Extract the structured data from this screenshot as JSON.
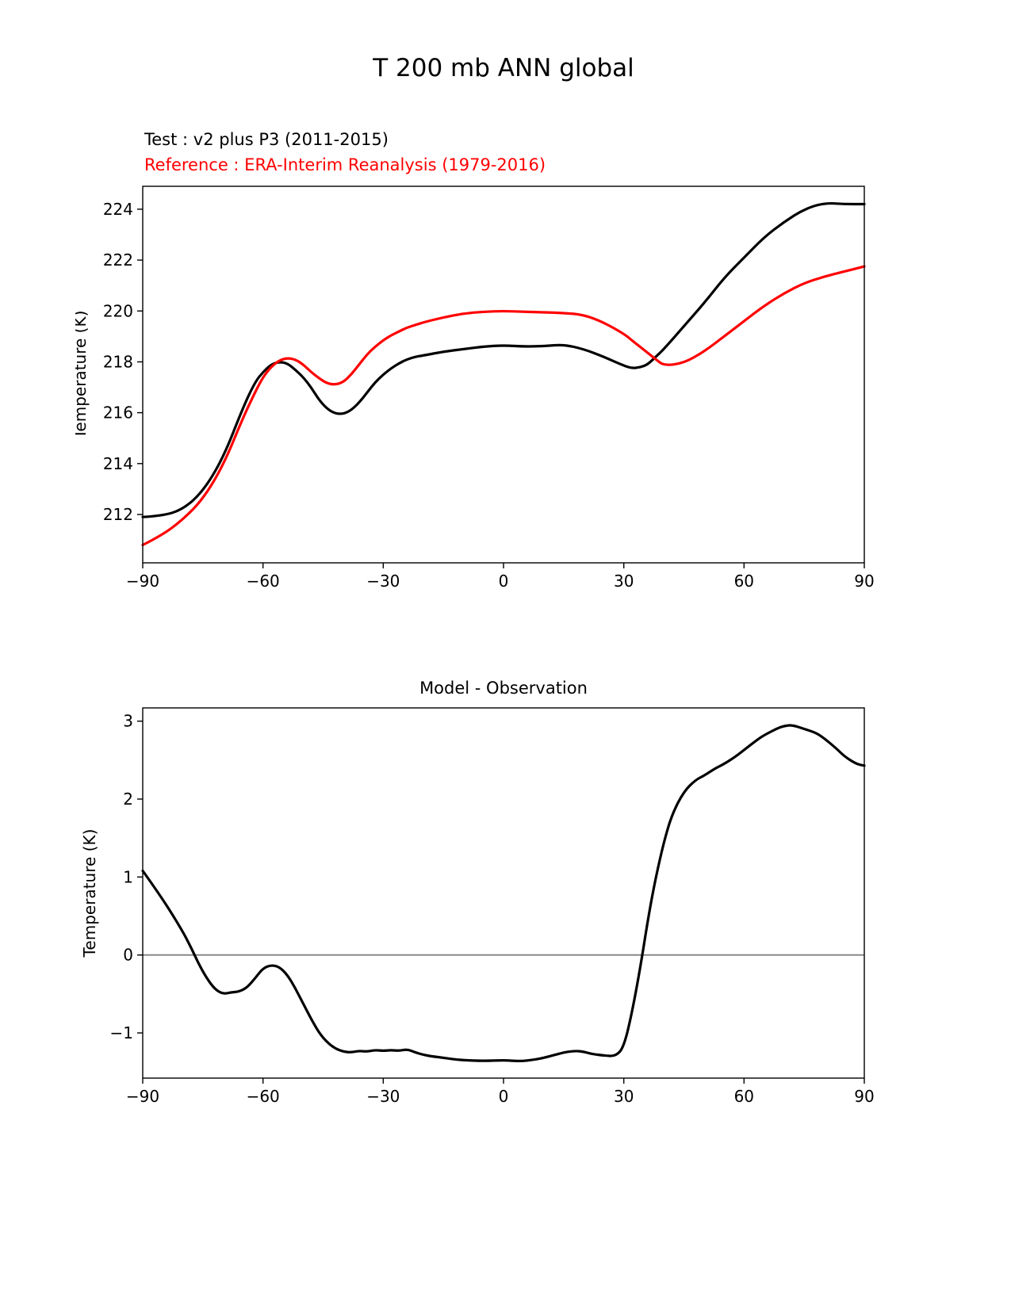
{
  "figure": {
    "title": "T 200 mb ANN global",
    "legend": {
      "test_label": "Test : v2 plus P3 (2011-2015)",
      "reference_label": "Reference : ERA-Interim Reanalysis (1979-2016)",
      "test_color": "#000000",
      "reference_color": "#ff0000"
    }
  },
  "chart_data": [
    {
      "type": "line",
      "title": "",
      "xlabel": "",
      "ylabel": "Temperature (K)",
      "xlim": [
        -90,
        90
      ],
      "ylim": [
        210.1,
        224.9
      ],
      "xticks": [
        -90,
        -60,
        -30,
        0,
        30,
        60,
        90
      ],
      "yticks": [
        212,
        214,
        216,
        218,
        220,
        222,
        224
      ],
      "grid": false,
      "legend_position": "above-upper-left",
      "zero_line": false,
      "series": [
        {
          "name": "Test : v2 plus P3 (2011-2015)",
          "color": "#000000",
          "x": [
            -90,
            -85,
            -80,
            -75,
            -70,
            -65,
            -62,
            -60,
            -58,
            -56,
            -54,
            -52,
            -50,
            -48,
            -46,
            -44,
            -42,
            -40,
            -38,
            -36,
            -34,
            -32,
            -30,
            -28,
            -26,
            -24,
            -22,
            -20,
            -15,
            -10,
            -5,
            0,
            5,
            10,
            15,
            20,
            25,
            30,
            32,
            34,
            36,
            38,
            40,
            45,
            50,
            55,
            60,
            65,
            70,
            75,
            80,
            85,
            90
          ],
          "values": [
            211.9,
            211.95,
            212.2,
            212.9,
            214.2,
            216.2,
            217.2,
            217.6,
            217.9,
            218.0,
            217.95,
            217.7,
            217.4,
            217.0,
            216.5,
            216.15,
            215.97,
            215.95,
            216.1,
            216.4,
            216.8,
            217.2,
            217.5,
            217.75,
            217.95,
            218.1,
            218.2,
            218.25,
            218.4,
            218.5,
            218.6,
            218.65,
            218.6,
            218.62,
            218.68,
            218.5,
            218.2,
            217.85,
            217.75,
            217.78,
            217.9,
            218.2,
            218.5,
            219.4,
            220.3,
            221.3,
            222.1,
            222.9,
            223.5,
            224.0,
            224.25,
            224.2,
            224.2
          ]
        },
        {
          "name": "Reference : ERA-Interim Reanalysis (1979-2016)",
          "color": "#ff0000",
          "x": [
            -90,
            -85,
            -80,
            -75,
            -70,
            -65,
            -62,
            -60,
            -58,
            -56,
            -54,
            -52,
            -50,
            -48,
            -46,
            -44,
            -42,
            -40,
            -38,
            -36,
            -34,
            -32,
            -30,
            -28,
            -26,
            -24,
            -22,
            -20,
            -15,
            -10,
            -5,
            0,
            5,
            10,
            15,
            20,
            25,
            30,
            32,
            34,
            36,
            38,
            40,
            45,
            50,
            55,
            60,
            65,
            70,
            75,
            80,
            85,
            90
          ],
          "values": [
            210.8,
            211.2,
            211.8,
            212.6,
            213.9,
            215.8,
            216.8,
            217.4,
            217.8,
            218.05,
            218.15,
            218.1,
            217.9,
            217.6,
            217.35,
            217.15,
            217.1,
            217.2,
            217.5,
            217.9,
            218.3,
            218.6,
            218.85,
            219.05,
            219.2,
            219.35,
            219.45,
            219.55,
            219.75,
            219.9,
            219.97,
            220.0,
            219.97,
            219.95,
            219.92,
            219.85,
            219.55,
            219.1,
            218.85,
            218.6,
            218.35,
            218.1,
            217.85,
            217.95,
            218.4,
            219.0,
            219.6,
            220.2,
            220.7,
            221.1,
            221.35,
            221.55,
            221.75
          ]
        }
      ]
    },
    {
      "type": "line",
      "title": "Model - Observation",
      "xlabel": "",
      "ylabel": "Temperature (K)",
      "xlim": [
        -90,
        90
      ],
      "ylim": [
        -1.58,
        3.17
      ],
      "xticks": [
        -90,
        -60,
        -30,
        0,
        30,
        60,
        90
      ],
      "yticks": [
        -1,
        0,
        1,
        2,
        3
      ],
      "grid": false,
      "zero_line": true,
      "zero_line_color": "#808080",
      "series": [
        {
          "name": "Model - Observation",
          "color": "#000000",
          "x": [
            -90,
            -85,
            -80,
            -78,
            -76,
            -74,
            -72,
            -70,
            -68,
            -66,
            -64,
            -62,
            -60,
            -58,
            -56,
            -54,
            -52,
            -50,
            -48,
            -46,
            -44,
            -42,
            -40,
            -38,
            -36,
            -34,
            -32,
            -30,
            -28,
            -26,
            -24,
            -22,
            -20,
            -18,
            -15,
            -12,
            -10,
            -5,
            0,
            3,
            5,
            8,
            10,
            13,
            15,
            18,
            20,
            22,
            25,
            28,
            30,
            32,
            34,
            36,
            38,
            40,
            42,
            45,
            48,
            50,
            53,
            55,
            58,
            60,
            63,
            65,
            68,
            70,
            72,
            75,
            78,
            80,
            83,
            85,
            88,
            90
          ],
          "values": [
            1.08,
            0.72,
            0.3,
            0.1,
            -0.12,
            -0.3,
            -0.44,
            -0.5,
            -0.48,
            -0.47,
            -0.42,
            -0.3,
            -0.17,
            -0.13,
            -0.15,
            -0.25,
            -0.42,
            -0.62,
            -0.82,
            -1.0,
            -1.12,
            -1.2,
            -1.24,
            -1.25,
            -1.23,
            -1.24,
            -1.22,
            -1.23,
            -1.22,
            -1.23,
            -1.21,
            -1.25,
            -1.28,
            -1.3,
            -1.32,
            -1.34,
            -1.35,
            -1.36,
            -1.35,
            -1.36,
            -1.36,
            -1.34,
            -1.32,
            -1.28,
            -1.25,
            -1.23,
            -1.24,
            -1.27,
            -1.29,
            -1.3,
            -1.18,
            -0.75,
            -0.2,
            0.45,
            1.0,
            1.45,
            1.8,
            2.1,
            2.25,
            2.3,
            2.4,
            2.45,
            2.55,
            2.63,
            2.75,
            2.82,
            2.9,
            2.94,
            2.95,
            2.9,
            2.85,
            2.78,
            2.65,
            2.55,
            2.45,
            2.43
          ]
        }
      ]
    }
  ]
}
